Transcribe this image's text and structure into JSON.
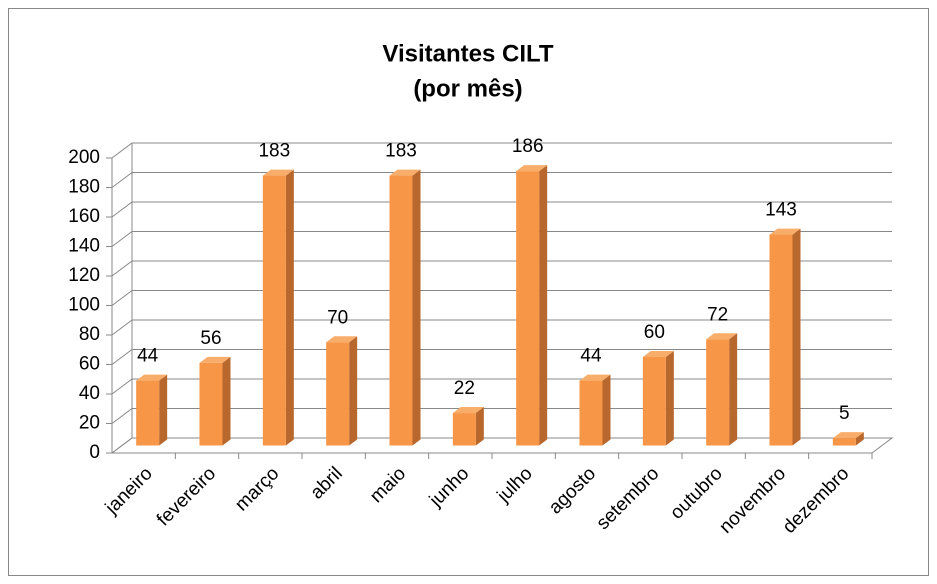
{
  "chart_data": {
    "type": "bar3d",
    "title": "Visitantes CILT",
    "subtitle": "(por mês)",
    "categories": [
      "janeiro",
      "fevereiro",
      "março",
      "abril",
      "maio",
      "junho",
      "julho",
      "agosto",
      "setembro",
      "outubro",
      "novembro",
      "dezembro"
    ],
    "values": [
      44,
      56,
      183,
      70,
      183,
      22,
      186,
      44,
      60,
      72,
      143,
      5
    ],
    "color": "#f79646",
    "ylim": [
      0,
      200
    ],
    "yticks": [
      0,
      20,
      40,
      60,
      80,
      100,
      120,
      140,
      160,
      180,
      200
    ],
    "grid": true
  }
}
